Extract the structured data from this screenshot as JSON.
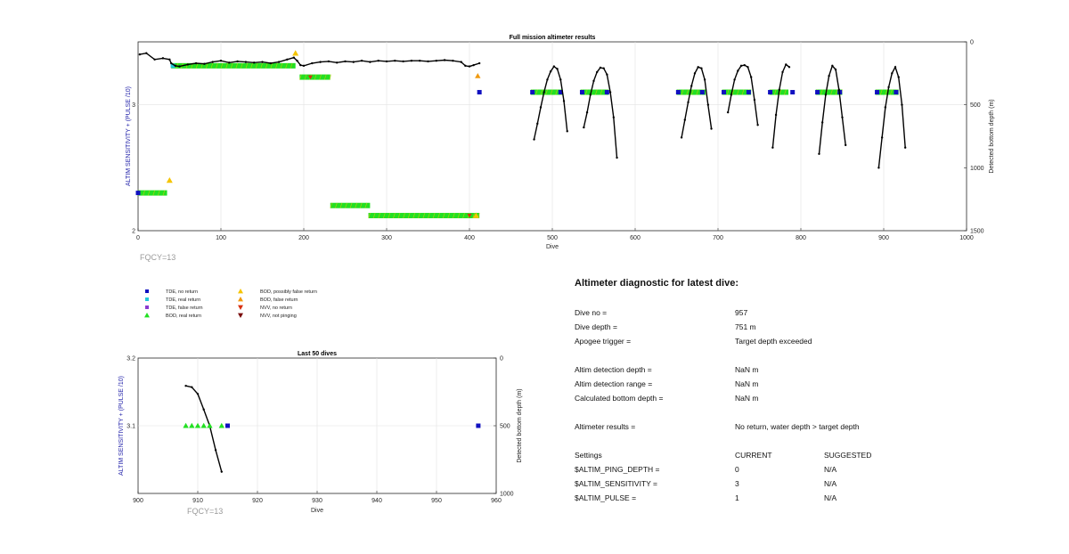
{
  "chart_data": [
    {
      "type": "scatter",
      "title": "Full mission altimeter results",
      "xlabel": "Dive",
      "ylabel": "ALTIM SENSITIVITY + (PULSE /10)",
      "y2label": "Detected bottom depth (m)",
      "xlim": [
        0,
        1000
      ],
      "ylim": [
        2,
        3.5
      ],
      "y2lim": [
        1500,
        0
      ],
      "xticks": [
        "0",
        "100",
        "200",
        "300",
        "400",
        "500",
        "600",
        "700",
        "800",
        "900",
        "1000"
      ],
      "yticks": [
        "2",
        "3"
      ],
      "y2ticks": [
        "0",
        "500",
        "1000",
        "1500"
      ],
      "grid": true,
      "footnote": "FQCY=13",
      "bod_real_segments": [
        {
          "x": [
            0,
            35
          ],
          "y": 2.3
        },
        {
          "x": [
            40,
            190
          ],
          "y": 3.31
        },
        {
          "x": [
            195,
            232
          ],
          "y": 3.22
        },
        {
          "x": [
            232,
            280
          ],
          "y": 2.2
        },
        {
          "x": [
            278,
            412
          ],
          "y": 2.12
        },
        {
          "x": [
            474,
            512
          ],
          "y": 3.1
        },
        {
          "x": [
            534,
            568
          ],
          "y": 3.1
        },
        {
          "x": [
            650,
            685
          ],
          "y": 3.1
        },
        {
          "x": [
            705,
            740
          ],
          "y": 3.1
        },
        {
          "x": [
            762,
            785
          ],
          "y": 3.1
        },
        {
          "x": [
            818,
            850
          ],
          "y": 3.1
        },
        {
          "x": [
            890,
            918
          ],
          "y": 3.1
        }
      ],
      "bod_possibly_false": [
        {
          "x": 38,
          "y": 2.4
        },
        {
          "x": 190,
          "y": 3.41
        },
        {
          "x": 408,
          "y": 2.12
        }
      ],
      "bod_false_return": [
        {
          "x": 410,
          "y": 3.23
        }
      ],
      "tde_no_return": [
        {
          "x": 412,
          "y": 3.1
        },
        {
          "x": 476,
          "y": 3.1
        },
        {
          "x": 510,
          "y": 3.1
        },
        {
          "x": 536,
          "y": 3.1
        },
        {
          "x": 566,
          "y": 3.1
        },
        {
          "x": 652,
          "y": 3.1
        },
        {
          "x": 681,
          "y": 3.1
        },
        {
          "x": 707,
          "y": 3.1
        },
        {
          "x": 737,
          "y": 3.1
        },
        {
          "x": 763,
          "y": 3.1
        },
        {
          "x": 790,
          "y": 3.1
        },
        {
          "x": 820,
          "y": 3.1
        },
        {
          "x": 847,
          "y": 3.1
        },
        {
          "x": 892,
          "y": 3.1
        },
        {
          "x": 915,
          "y": 3.1
        },
        {
          "x": 0,
          "y": 2.3
        }
      ],
      "tde_real_return": [
        {
          "x": 42,
          "y": 3.31
        }
      ],
      "nvv_no_return": [
        {
          "x": 208,
          "y": 3.22
        },
        {
          "x": 400,
          "y": 2.12
        }
      ],
      "depth_profile": [
        [
          2,
          100
        ],
        [
          10,
          90
        ],
        [
          20,
          140
        ],
        [
          30,
          130
        ],
        [
          38,
          140
        ],
        [
          40,
          170
        ],
        [
          45,
          190
        ],
        [
          50,
          195
        ],
        [
          60,
          180
        ],
        [
          70,
          170
        ],
        [
          80,
          175
        ],
        [
          90,
          160
        ],
        [
          100,
          150
        ],
        [
          110,
          165
        ],
        [
          120,
          155
        ],
        [
          130,
          160
        ],
        [
          140,
          165
        ],
        [
          150,
          160
        ],
        [
          160,
          170
        ],
        [
          170,
          160
        ],
        [
          180,
          140
        ],
        [
          188,
          125
        ],
        [
          192,
          150
        ],
        [
          196,
          185
        ],
        [
          200,
          190
        ],
        [
          210,
          170
        ],
        [
          220,
          160
        ],
        [
          230,
          155
        ],
        [
          240,
          165
        ],
        [
          250,
          155
        ],
        [
          260,
          160
        ],
        [
          270,
          150
        ],
        [
          280,
          160
        ],
        [
          290,
          150
        ],
        [
          300,
          155
        ],
        [
          310,
          150
        ],
        [
          320,
          155
        ],
        [
          330,
          150
        ],
        [
          340,
          150
        ],
        [
          350,
          155
        ],
        [
          360,
          150
        ],
        [
          370,
          145
        ],
        [
          380,
          150
        ],
        [
          390,
          160
        ],
        [
          395,
          190
        ],
        [
          400,
          195
        ],
        [
          405,
          185
        ],
        [
          412,
          170
        ]
      ],
      "depth_arcs": [
        [
          [
            478,
            775
          ],
          [
            482,
            650
          ],
          [
            486,
            520
          ],
          [
            490,
            400
          ],
          [
            494,
            300
          ],
          [
            498,
            235
          ],
          [
            502,
            195
          ],
          [
            506,
            215
          ],
          [
            510,
            300
          ],
          [
            514,
            470
          ],
          [
            518,
            710
          ]
        ],
        [
          [
            538,
            680
          ],
          [
            542,
            560
          ],
          [
            546,
            420
          ],
          [
            550,
            310
          ],
          [
            554,
            240
          ],
          [
            558,
            205
          ],
          [
            562,
            210
          ],
          [
            566,
            260
          ],
          [
            570,
            400
          ],
          [
            574,
            600
          ],
          [
            578,
            920
          ]
        ],
        [
          [
            656,
            760
          ],
          [
            660,
            620
          ],
          [
            664,
            480
          ],
          [
            668,
            350
          ],
          [
            672,
            250
          ],
          [
            676,
            200
          ],
          [
            680,
            210
          ],
          [
            684,
            300
          ],
          [
            688,
            500
          ],
          [
            692,
            690
          ]
        ],
        [
          [
            712,
            560
          ],
          [
            716,
            420
          ],
          [
            720,
            300
          ],
          [
            724,
            230
          ],
          [
            728,
            190
          ],
          [
            732,
            185
          ],
          [
            736,
            200
          ],
          [
            740,
            280
          ],
          [
            744,
            460
          ],
          [
            748,
            660
          ]
        ],
        [
          [
            766,
            840
          ],
          [
            770,
            580
          ],
          [
            774,
            380
          ],
          [
            778,
            240
          ],
          [
            782,
            180
          ],
          [
            786,
            200
          ]
        ],
        [
          [
            822,
            890
          ],
          [
            826,
            640
          ],
          [
            830,
            420
          ],
          [
            834,
            270
          ],
          [
            838,
            190
          ],
          [
            842,
            220
          ],
          [
            846,
            380
          ],
          [
            850,
            600
          ],
          [
            854,
            820
          ]
        ],
        [
          [
            894,
            1000
          ],
          [
            898,
            760
          ],
          [
            902,
            520
          ],
          [
            906,
            360
          ],
          [
            910,
            250
          ],
          [
            914,
            200
          ],
          [
            918,
            280
          ],
          [
            922,
            500
          ],
          [
            926,
            840
          ]
        ]
      ]
    },
    {
      "type": "scatter",
      "title": "Last 50 dives",
      "xlabel": "Dive",
      "ylabel": "ALTIM SENSITIVITY + (PULSE /10)",
      "y2label": "Detected bottom depth (m)",
      "xlim": [
        900,
        960
      ],
      "ylim": [
        3.0,
        3.2
      ],
      "y2lim": [
        1000,
        0
      ],
      "xticks": [
        "900",
        "910",
        "920",
        "930",
        "940",
        "950",
        "960"
      ],
      "yticks": [
        "3.1",
        "3.2"
      ],
      "y2ticks": [
        "0",
        "500",
        "1000"
      ],
      "grid": true,
      "footnote": "FQCY=13",
      "bod_real_return": [
        {
          "x": 908,
          "y": 3.1
        },
        {
          "x": 909,
          "y": 3.1
        },
        {
          "x": 910,
          "y": 3.1
        },
        {
          "x": 911,
          "y": 3.1
        },
        {
          "x": 912,
          "y": 3.1
        },
        {
          "x": 914,
          "y": 3.1
        }
      ],
      "tde_no_return": [
        {
          "x": 915,
          "y": 3.1
        },
        {
          "x": 957,
          "y": 3.1
        }
      ],
      "depth_profile": [
        [
          908,
          205
        ],
        [
          909,
          215
        ],
        [
          910,
          265
        ],
        [
          911,
          380
        ],
        [
          912,
          500
        ],
        [
          913,
          680
        ],
        [
          914,
          840
        ]
      ]
    }
  ],
  "legend": {
    "items": [
      {
        "label": "TDE, no return",
        "shape": "square",
        "color": "#1010c0"
      },
      {
        "label": "TDE, real return",
        "shape": "square",
        "color": "#22c8d8"
      },
      {
        "label": "TDE, false return",
        "shape": "square",
        "color": "#8a3ad0"
      },
      {
        "label": "BOD, real return",
        "shape": "triangle-up",
        "color": "#22e022"
      },
      {
        "label": "BOD, possibly false return",
        "shape": "triangle-up",
        "color": "#f5c400"
      },
      {
        "label": "BOD, false return",
        "shape": "triangle-up",
        "color": "#f09a10"
      },
      {
        "label": "NVV, no return",
        "shape": "triangle-down",
        "color": "#d83010"
      },
      {
        "label": "NVV, not pinging",
        "shape": "triangle-down",
        "color": "#7a0a0a"
      }
    ]
  },
  "diagnostic": {
    "heading": "Altimeter diagnostic for latest dive:",
    "dive_no_label": "Dive no =",
    "dive_no_value": "957",
    "dive_depth_label": "Dive depth =",
    "dive_depth_value": "751 m",
    "apogee_label": "Apogee trigger =",
    "apogee_value": "Target depth exceeded",
    "altim_det_depth_label": "Altim detection depth =",
    "altim_det_depth_value": "NaN m",
    "altim_det_range_label": "Altim detection range =",
    "altim_det_range_value": "NaN m",
    "calc_bottom_label": "Calculated bottom depth =",
    "calc_bottom_value": "NaN m",
    "results_label": "Altimeter results =",
    "results_value": "No return, water depth > target depth",
    "settings_label": "Settings",
    "current_label": "CURRENT",
    "suggested_label": "SUGGESTED",
    "ping_depth_label": "$ALTIM_PING_DEPTH =",
    "ping_depth_current": "0",
    "ping_depth_suggested": "N/A",
    "sensitivity_label": "$ALTIM_SENSITIVITY =",
    "sensitivity_current": "3",
    "sensitivity_suggested": "N/A",
    "pulse_label": "$ALTIM_PULSE =",
    "pulse_current": "1",
    "pulse_suggested": "N/A"
  },
  "colors": {
    "bod_real": "#22e022",
    "bod_possibly_false": "#f5c400",
    "bod_false": "#f09a10",
    "tde_no_return": "#1010c0",
    "tde_real": "#22c8d8",
    "nvv_no_return": "#d83010",
    "depth_line": "#000000",
    "grid": "#e2e2e2",
    "ylabel_blue": "#1f1fa8"
  }
}
